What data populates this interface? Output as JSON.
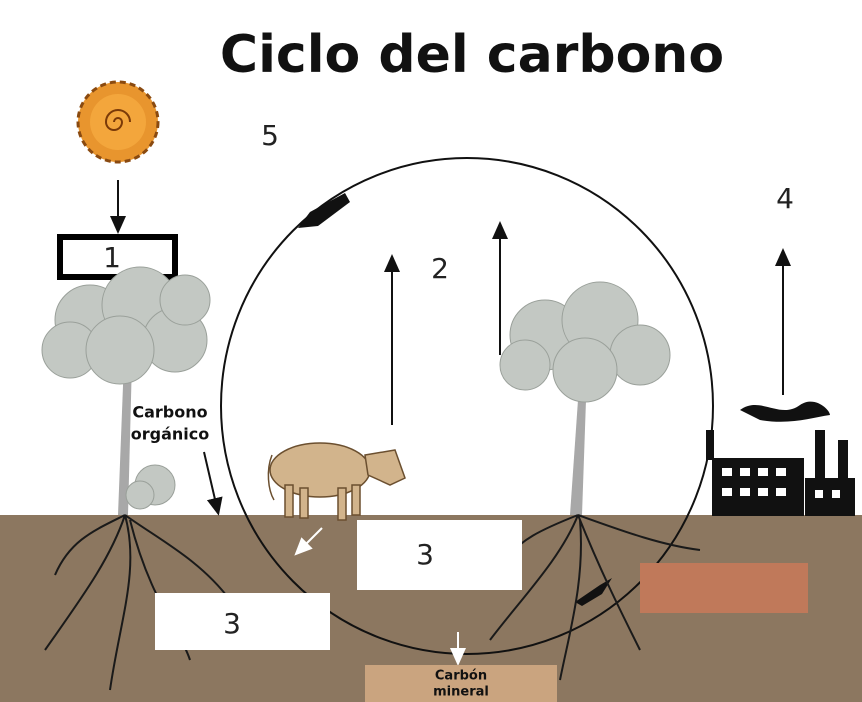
{
  "title": "Ciclo del carbono",
  "labels": [
    "1",
    "2",
    "3",
    "3",
    "4",
    "5"
  ],
  "organic_carbon": [
    "Carbono",
    "orgánico"
  ],
  "mineral_carbon": [
    "Carbón",
    "mineral"
  ]
}
